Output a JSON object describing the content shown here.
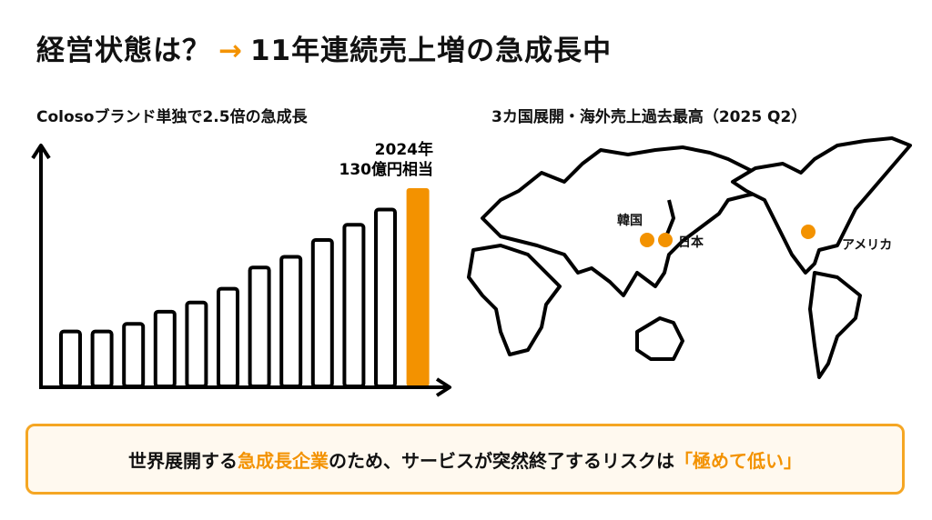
{
  "title": {
    "left": "経営状態は？",
    "arrow": "→",
    "right": "11年連続売上増の急成長中"
  },
  "left_subtitle": "Colosoブランド単独で2.5倍の急成長",
  "right_subtitle": "3カ国展開・海外売上過去最高（2025 Q2）",
  "chart_data": {
    "type": "bar",
    "title": "",
    "xlabel": "",
    "ylabel": "",
    "categories": [
      "",
      "",
      "",
      "",
      "",
      "",
      "",
      "",
      "",
      "",
      "",
      ""
    ],
    "values": [
      36,
      36,
      41,
      49,
      55,
      64,
      78,
      85,
      96,
      106,
      116,
      130
    ],
    "highlight_index": 11,
    "highlight_label": [
      "2024年",
      "130億円相当"
    ],
    "ylim": [
      0,
      150
    ],
    "grid": false,
    "bar_color": "#ffffff",
    "highlight_color": "#f39200"
  },
  "map": {
    "markers": [
      {
        "label": "韓国"
      },
      {
        "label": "日本"
      },
      {
        "label": "アメリカ"
      }
    ],
    "marker_color": "#f39200"
  },
  "bottom_message": {
    "part1": "世界展開する",
    "highlight1": "急成長企業",
    "part2": "のため、サービスが突然終了するリスクは",
    "highlight2": "「極めて低い」"
  }
}
